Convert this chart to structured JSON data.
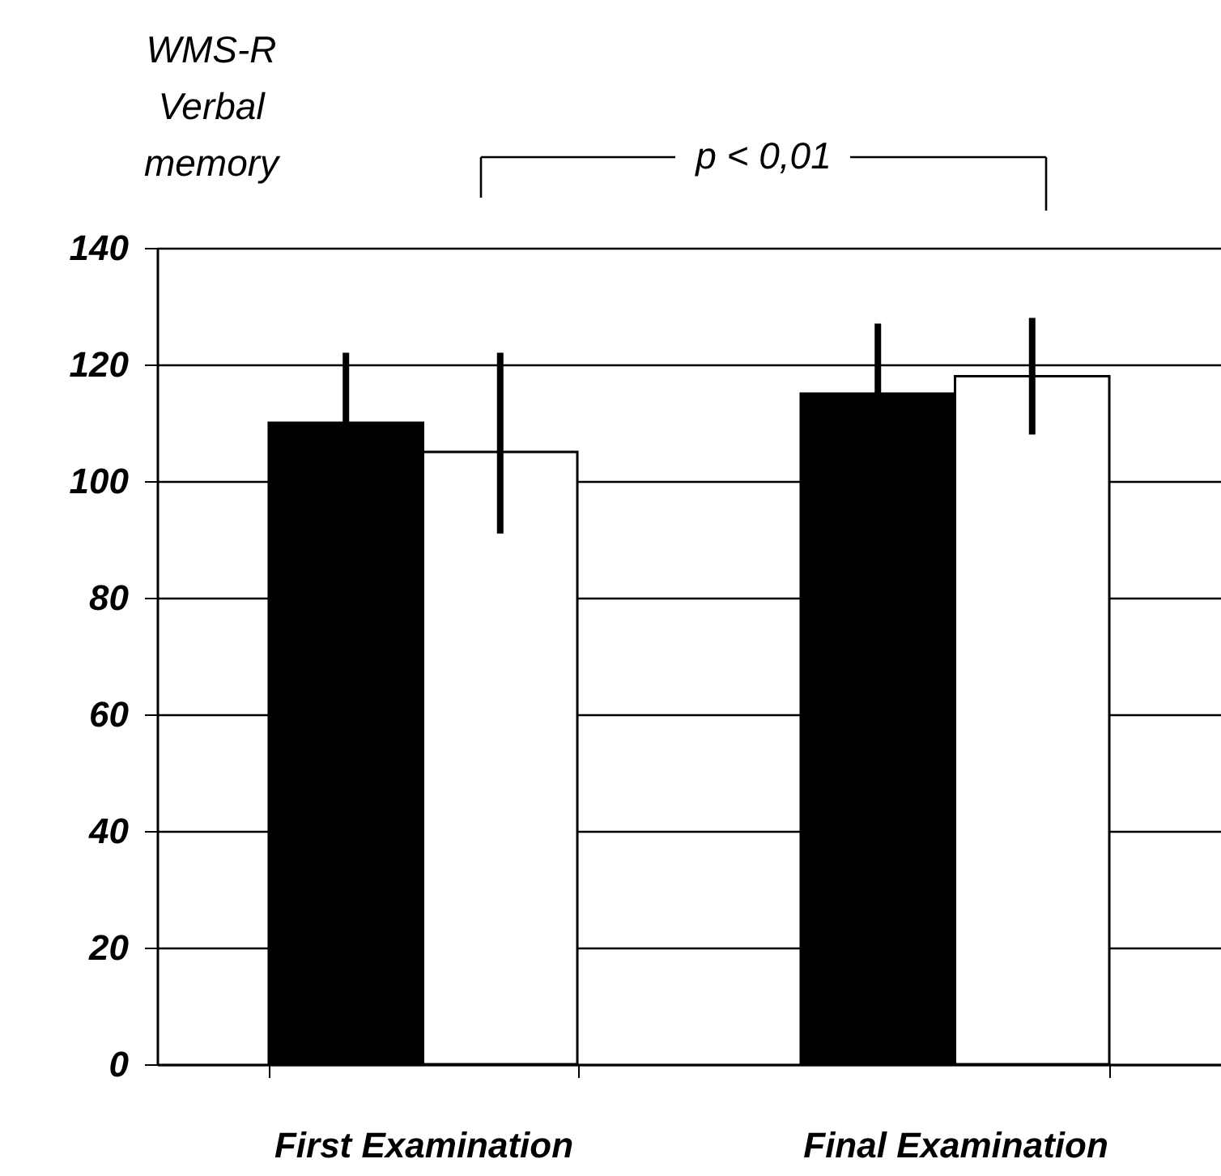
{
  "chart_data": {
    "type": "bar",
    "ylabel": "WMS-R\nVerbal\nmemory",
    "categories": [
      "First Examination",
      "Final Examination"
    ],
    "series": [
      {
        "color": "#000000",
        "values": [
          110,
          115
        ],
        "errors": [
          12,
          12
        ]
      },
      {
        "color": "#ffffff",
        "values": [
          105,
          118
        ],
        "errors": [
          [
            91,
            122
          ],
          [
            108,
            128
          ]
        ]
      }
    ],
    "ylim": [
      0,
      140
    ],
    "yticks": [
      0,
      20,
      40,
      60,
      80,
      100,
      120,
      140
    ],
    "grid": "y",
    "legend": false,
    "annotations": [
      "p < 0,01"
    ]
  }
}
